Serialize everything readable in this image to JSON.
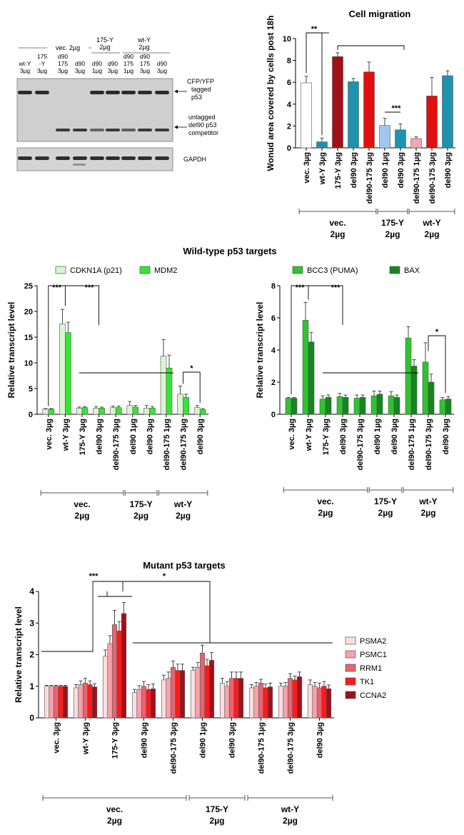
{
  "blot": {
    "header_groups": [
      {
        "label": "vec. 2µg"
      },
      {
        "label": "175-Y 2µg",
        "line1": "175-Y",
        "line2": "2µg"
      },
      {
        "label": "wt-Y 2µg",
        "line1": "wt-Y",
        "line2": "2µg"
      }
    ],
    "lane_labels": [
      [
        "wt-Y",
        "3µg"
      ],
      [
        "175",
        "-Y",
        "3µg"
      ],
      [
        "d90",
        "175",
        "3µg"
      ],
      [
        "d90",
        "3µg"
      ],
      [
        "d90",
        "1µg"
      ],
      [
        "d90",
        "3µg"
      ],
      [
        "d90",
        "175",
        "1µg"
      ],
      [
        "d90",
        "175",
        "3µg"
      ],
      [
        "d90",
        "3µg"
      ]
    ],
    "annotations": {
      "tagged": [
        "CFP/YFP",
        "tagged",
        "p53"
      ],
      "untagged": [
        "untagged",
        "del90 p53",
        "competitor"
      ],
      "gapdh": "GAPDH"
    }
  },
  "chart_data": [
    {
      "id": "migration",
      "type": "bar",
      "title": "Cell migration",
      "ylabel": "Wonud area covered by cells post 18h",
      "ylim": [
        0,
        10
      ],
      "yticks": [
        0,
        2,
        4,
        6,
        8,
        10
      ],
      "categories": [
        "vec. 3µg",
        "wt-Y 3µg",
        "175-Y 3µg",
        "del90 3µg",
        "del90-175 3µg",
        "del90 1µg",
        "del90 3µg",
        "del90-175 1µg",
        "del90-175 3µg",
        "del90 3µg"
      ],
      "values": [
        5.95,
        0.55,
        8.35,
        6.05,
        6.95,
        2.05,
        1.65,
        0.85,
        4.75,
        6.6
      ],
      "errors": [
        0.6,
        0.35,
        0.35,
        0.3,
        0.9,
        0.65,
        0.55,
        0.15,
        1.7,
        0.45
      ],
      "colors": [
        "#ffffff",
        "#1e93b0",
        "#a01018",
        "#1e93b0",
        "#e01010",
        "#9ec8f0",
        "#1e93b0",
        "#f4a8b0",
        "#e01010",
        "#1e93b0"
      ],
      "groups": [
        {
          "label": "vec.",
          "sub": "2µg",
          "start": 0,
          "end": 4
        },
        {
          "label": "175-Y",
          "sub": "2µg",
          "start": 5,
          "end": 6
        },
        {
          "label": "wt-Y",
          "sub": "2µg",
          "start": 7,
          "end": 9
        }
      ],
      "significance": [
        "**",
        "***"
      ]
    },
    {
      "id": "wt_targets_left",
      "type": "bar",
      "section_title": "Wild-type p53 targets",
      "ylabel": "Relative transcript level",
      "ylim": [
        0,
        25
      ],
      "yticks": [
        0,
        5,
        10,
        15,
        20,
        25
      ],
      "categories": [
        "vec. 3µg",
        "wt-Y 3µg",
        "175-Y 3µg",
        "del90 3µg",
        "del90-175 3µg",
        "del90 1µg",
        "del90 3µg",
        "del90-175 1µg",
        "del90-175 3µg",
        "del90 3µg"
      ],
      "series": [
        {
          "name": "CDKN1A (p21)",
          "color": "#d8f5d0",
          "values": [
            1.0,
            17.6,
            1.2,
            1.2,
            1.3,
            1.7,
            1.2,
            11.3,
            3.9,
            1.3
          ],
          "errors": [
            0.1,
            2.8,
            0.2,
            0.3,
            0.3,
            0.8,
            0.5,
            3.2,
            1.6,
            0.4
          ]
        },
        {
          "name": "MDM2",
          "color": "#33e633",
          "values": [
            1.0,
            15.9,
            1.3,
            1.2,
            1.3,
            1.4,
            1.2,
            9.0,
            3.3,
            0.9
          ],
          "errors": [
            0.1,
            2.0,
            0.2,
            0.2,
            0.3,
            0.3,
            0.3,
            2.5,
            0.6,
            0.2
          ]
        }
      ],
      "groups": [
        {
          "label": "vec.",
          "sub": "2µg",
          "start": 0,
          "end": 4
        },
        {
          "label": "175-Y",
          "sub": "2µg",
          "start": 5,
          "end": 6
        },
        {
          "label": "wt-Y",
          "sub": "2µg",
          "start": 7,
          "end": 9
        }
      ],
      "significance": [
        "***",
        "***",
        "*"
      ]
    },
    {
      "id": "wt_targets_right",
      "type": "bar",
      "ylabel": "Relative transcript level",
      "ylim": [
        0,
        8
      ],
      "yticks": [
        0,
        2,
        4,
        6,
        8
      ],
      "categories": [
        "vec. 3µg",
        "wt-Y 3µg",
        "175-Y 3µg",
        "del90 3µg",
        "del90-175 3µg",
        "del90 1µg",
        "del90 3µg",
        "del90-175 1µg",
        "del90-175 3µg",
        "del90 3µg"
      ],
      "series": [
        {
          "name": "BCC3 (PUMA)",
          "color": "#2ec42e",
          "values": [
            1.0,
            5.85,
            0.95,
            1.1,
            1.0,
            1.15,
            1.15,
            4.75,
            3.25,
            0.9
          ],
          "errors": [
            0.05,
            1.1,
            0.2,
            0.2,
            0.2,
            0.3,
            0.25,
            0.7,
            1.2,
            0.15
          ]
        },
        {
          "name": "BAX",
          "color": "#14861e",
          "values": [
            1.0,
            4.5,
            1.05,
            1.05,
            1.05,
            1.25,
            1.05,
            3.0,
            2.0,
            0.95
          ],
          "errors": [
            0.05,
            0.6,
            0.15,
            0.15,
            0.15,
            0.2,
            0.15,
            0.4,
            0.5,
            0.15
          ]
        }
      ],
      "groups": [
        {
          "label": "vec.",
          "sub": "2µg",
          "start": 0,
          "end": 4
        },
        {
          "label": "175-Y",
          "sub": "2µg",
          "start": 5,
          "end": 6
        },
        {
          "label": "wt-Y",
          "sub": "2µg",
          "start": 7,
          "end": 9
        }
      ],
      "significance": [
        "***",
        "***",
        "*"
      ]
    },
    {
      "id": "mutant_targets",
      "type": "bar",
      "title": "Mutant p53 targets",
      "ylabel": "Relative transcript level",
      "ylim": [
        0,
        4
      ],
      "yticks": [
        0,
        1,
        2,
        3,
        4
      ],
      "categories": [
        "vec. 3µg",
        "wt-Y 3µg",
        "175-Y 3µg",
        "del90 3µg",
        "del90-175 3µg",
        "del90 1µg",
        "del90 3µg",
        "del90-175 1µg",
        "del90-175 3µg",
        "del90 3µg"
      ],
      "series": [
        {
          "name": "PSMA2",
          "color": "#fcdde0",
          "values": [
            1.0,
            0.95,
            1.95,
            0.8,
            1.2,
            1.5,
            1.1,
            0.95,
            1.0,
            1.05
          ],
          "errors": [
            0.03,
            0.1,
            0.2,
            0.1,
            0.15,
            0.1,
            0.15,
            0.1,
            0.1,
            0.15
          ]
        },
        {
          "name": "PSMC1",
          "color": "#f5a3ab",
          "values": [
            1.0,
            1.05,
            2.35,
            0.9,
            1.25,
            1.6,
            1.0,
            1.0,
            1.0,
            1.0
          ],
          "errors": [
            0.03,
            0.12,
            0.25,
            0.12,
            0.2,
            0.15,
            0.15,
            0.12,
            0.12,
            0.12
          ]
        },
        {
          "name": "RRM1",
          "color": "#e86470",
          "values": [
            1.0,
            1.1,
            2.95,
            1.0,
            1.6,
            2.05,
            1.25,
            1.1,
            1.25,
            0.95
          ],
          "errors": [
            0.03,
            0.15,
            0.45,
            0.15,
            0.2,
            0.25,
            0.2,
            0.12,
            0.15,
            0.15
          ]
        },
        {
          "name": "TK1",
          "color": "#ff1a1a",
          "values": [
            1.0,
            1.05,
            2.75,
            0.9,
            1.5,
            1.65,
            1.25,
            0.95,
            1.2,
            1.0
          ],
          "errors": [
            0.03,
            0.12,
            0.3,
            0.15,
            0.2,
            0.2,
            0.2,
            0.12,
            0.12,
            0.15
          ]
        },
        {
          "name": "CCNA2",
          "color": "#a0101a",
          "values": [
            1.0,
            0.98,
            3.3,
            0.92,
            1.5,
            1.82,
            1.25,
            0.98,
            1.3,
            0.92
          ],
          "errors": [
            0.03,
            0.1,
            0.35,
            0.15,
            0.2,
            0.25,
            0.2,
            0.12,
            0.15,
            0.12
          ]
        }
      ],
      "groups": [
        {
          "label": "vec.",
          "sub": "2µg",
          "start": 0,
          "end": 4
        },
        {
          "label": "175-Y",
          "sub": "2µg",
          "start": 5,
          "end": 6
        },
        {
          "label": "wt-Y",
          "sub": "2µg",
          "start": 7,
          "end": 9
        }
      ],
      "significance": [
        "***",
        "*"
      ]
    }
  ]
}
